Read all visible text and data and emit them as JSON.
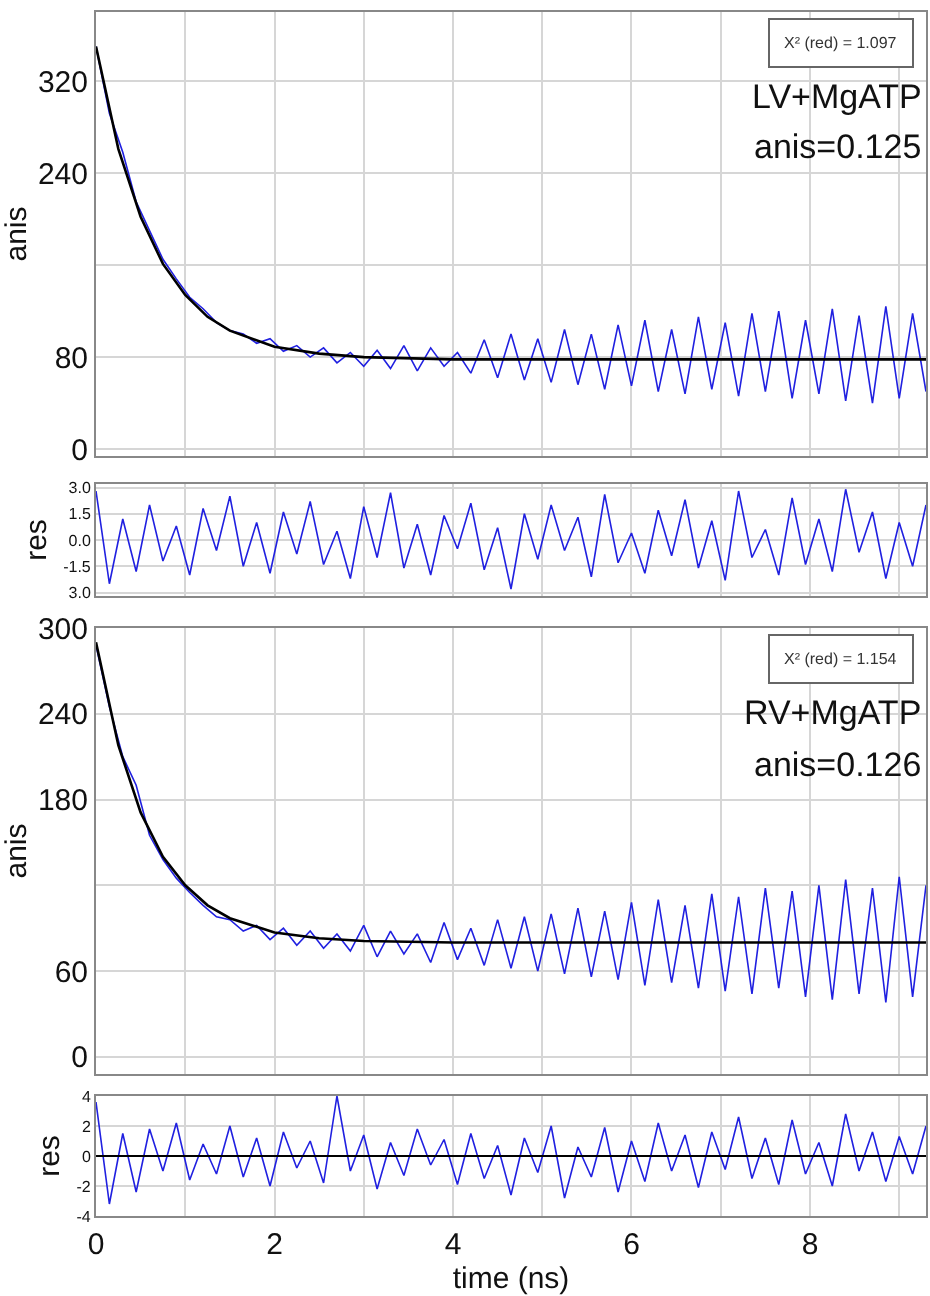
{
  "chart_data": [
    {
      "type": "line",
      "ylabel": "anis",
      "annotations": [
        "X² (red) = 1.097",
        "LV+MgATP",
        "anis=0.125"
      ],
      "xlim": [
        0,
        9.3
      ],
      "xticks": [
        0,
        {
          "value": 1,
          "label": null
        },
        2,
        {
          "value": 3,
          "label": null
        },
        4,
        {
          "value": 5,
          "label": null
        },
        6,
        {
          "value": 7,
          "label": null
        },
        8,
        {
          "value": 9,
          "label": null
        }
      ],
      "ylim": [
        -6,
        380
      ],
      "yticks": [
        0,
        80,
        {
          "value": 160,
          "label": null
        },
        240,
        320
      ],
      "grid": true,
      "tick_labels": "y",
      "x": [
        0,
        0.15,
        0.3,
        0.45,
        0.6,
        0.75,
        0.9,
        1.05,
        1.2,
        1.35,
        1.5,
        1.65,
        1.8,
        1.95,
        2.1,
        2.25,
        2.4,
        2.55,
        2.7,
        2.85,
        3.0,
        3.15,
        3.3,
        3.45,
        3.6,
        3.75,
        3.9,
        4.05,
        4.2,
        4.35,
        4.5,
        4.65,
        4.8,
        4.95,
        5.1,
        5.25,
        5.4,
        5.55,
        5.7,
        5.85,
        6.0,
        6.15,
        6.3,
        6.45,
        6.6,
        6.75,
        6.9,
        7.05,
        7.2,
        7.35,
        7.5,
        7.65,
        7.8,
        7.95,
        8.1,
        8.25,
        8.4,
        8.55,
        8.7,
        8.85,
        9.0,
        9.15,
        9.3
      ],
      "series": [
        {
          "color": "#2020e0",
          "values": [
            350,
            292,
            258,
            215,
            190,
            165,
            148,
            132,
            122,
            110,
            103,
            100,
            92,
            96,
            85,
            90,
            80,
            88,
            75,
            84,
            72,
            86,
            70,
            90,
            68,
            88,
            72,
            84,
            66,
            95,
            62,
            100,
            60,
            96,
            58,
            104,
            56,
            100,
            52,
            108,
            55,
            112,
            50,
            104,
            48,
            115,
            52,
            110,
            46,
            118,
            50,
            120,
            44,
            112,
            48,
            122,
            42,
            116,
            40,
            124,
            44,
            118,
            50
          ]
        },
        {
          "color": "#000000",
          "x": [
            0,
            0.25,
            0.5,
            0.75,
            1,
            1.25,
            1.5,
            2,
            2.5,
            3,
            4,
            5,
            6,
            7,
            8,
            9.3
          ],
          "values": [
            350,
            261,
            202,
            161,
            134,
            115,
            103,
            89,
            83,
            80,
            78,
            78,
            78,
            78,
            78,
            78
          ]
        }
      ]
    },
    {
      "type": "line",
      "ylabel": "res",
      "xlim": [
        0,
        9.3
      ],
      "xticks": [
        0,
        {
          "value": 1,
          "label": null
        },
        2,
        {
          "value": 3,
          "label": null
        },
        4,
        {
          "value": 5,
          "label": null
        },
        6,
        {
          "value": 7,
          "label": null
        },
        8,
        {
          "value": 9,
          "label": null
        }
      ],
      "ylim": [
        -3.2,
        3.2
      ],
      "yticks": [
        {
          "value": -3,
          "label": "3.0"
        },
        -1.5,
        {
          "value": 0,
          "label": "0.0"
        },
        1.5,
        {
          "value": 3,
          "label": "3.0"
        }
      ],
      "grid": true,
      "tick_labels": "y",
      "x": [
        0,
        0.15,
        0.3,
        0.45,
        0.6,
        0.75,
        0.9,
        1.05,
        1.2,
        1.35,
        1.5,
        1.65,
        1.8,
        1.95,
        2.1,
        2.25,
        2.4,
        2.55,
        2.7,
        2.85,
        3.0,
        3.15,
        3.3,
        3.45,
        3.6,
        3.75,
        3.9,
        4.05,
        4.2,
        4.35,
        4.5,
        4.65,
        4.8,
        4.95,
        5.1,
        5.25,
        5.4,
        5.55,
        5.7,
        5.85,
        6.0,
        6.15,
        6.3,
        6.45,
        6.6,
        6.75,
        6.9,
        7.05,
        7.2,
        7.35,
        7.5,
        7.65,
        7.8,
        7.95,
        8.1,
        8.25,
        8.4,
        8.55,
        8.7,
        8.85,
        9.0,
        9.15,
        9.3
      ],
      "series": [
        {
          "color": "#2020e0",
          "values": [
            2.8,
            -2.5,
            1.2,
            -1.8,
            2.0,
            -1.2,
            0.8,
            -2.0,
            1.8,
            -0.6,
            2.5,
            -1.5,
            1.0,
            -1.9,
            1.6,
            -0.8,
            2.2,
            -1.4,
            0.5,
            -2.2,
            1.9,
            -1.0,
            2.7,
            -1.6,
            0.9,
            -2.0,
            1.4,
            -0.5,
            2.1,
            -1.7,
            0.7,
            -2.8,
            1.5,
            -1.1,
            2.0,
            -0.6,
            1.3,
            -2.1,
            2.6,
            -1.3,
            0.4,
            -1.9,
            1.7,
            -0.9,
            2.3,
            -1.6,
            1.1,
            -2.3,
            2.8,
            -1.0,
            0.6,
            -2.0,
            2.4,
            -1.4,
            1.2,
            -1.8,
            2.9,
            -0.7,
            1.6,
            -2.2,
            1.0,
            -1.5,
            2.0
          ]
        }
      ]
    },
    {
      "type": "line",
      "ylabel": "anis",
      "annotations": [
        "X² (red) = 1.154",
        "RV+MgATP",
        "anis=0.126"
      ],
      "xlim": [
        0,
        9.3
      ],
      "xticks": [
        0,
        {
          "value": 1,
          "label": null
        },
        2,
        {
          "value": 3,
          "label": null
        },
        4,
        {
          "value": 5,
          "label": null
        },
        6,
        {
          "value": 7,
          "label": null
        },
        8,
        {
          "value": 9,
          "label": null
        }
      ],
      "ylim": [
        -12,
        300
      ],
      "yticks": [
        0,
        60,
        {
          "value": 120,
          "label": null
        },
        180,
        240,
        300
      ],
      "grid": true,
      "tick_labels": "y",
      "x": [
        0,
        0.15,
        0.3,
        0.45,
        0.6,
        0.75,
        0.9,
        1.05,
        1.2,
        1.35,
        1.5,
        1.65,
        1.8,
        1.95,
        2.1,
        2.25,
        2.4,
        2.55,
        2.7,
        2.85,
        3.0,
        3.15,
        3.3,
        3.45,
        3.6,
        3.75,
        3.9,
        4.05,
        4.2,
        4.35,
        4.5,
        4.65,
        4.8,
        4.95,
        5.1,
        5.25,
        5.4,
        5.55,
        5.7,
        5.85,
        6.0,
        6.15,
        6.3,
        6.45,
        6.6,
        6.75,
        6.9,
        7.05,
        7.2,
        7.35,
        7.5,
        7.65,
        7.8,
        7.95,
        8.1,
        8.25,
        8.4,
        8.55,
        8.7,
        8.85,
        9.0,
        9.15,
        9.3
      ],
      "series": [
        {
          "color": "#2020e0",
          "values": [
            288,
            245,
            210,
            190,
            155,
            138,
            125,
            115,
            106,
            98,
            96,
            88,
            92,
            82,
            90,
            78,
            88,
            76,
            86,
            74,
            92,
            70,
            88,
            72,
            86,
            66,
            94,
            68,
            90,
            64,
            96,
            62,
            98,
            60,
            100,
            58,
            104,
            56,
            102,
            54,
            108,
            50,
            110,
            52,
            106,
            48,
            114,
            46,
            112,
            44,
            118,
            48,
            116,
            42,
            120,
            40,
            124,
            44,
            118,
            38,
            126,
            42,
            120
          ]
        },
        {
          "color": "#000000",
          "x": [
            0,
            0.25,
            0.5,
            0.75,
            1,
            1.25,
            1.5,
            2,
            2.5,
            3,
            4,
            5,
            6,
            7,
            8,
            9.3
          ],
          "values": [
            290,
            218,
            171,
            140,
            120,
            106,
            97,
            87,
            83,
            81,
            80,
            80,
            80,
            80,
            80,
            80
          ]
        }
      ]
    },
    {
      "type": "line",
      "ylabel": "res",
      "xlabel": "time (ns)",
      "xlim": [
        0,
        9.3
      ],
      "xticks": [
        0,
        {
          "value": 1,
          "label": null
        },
        2,
        {
          "value": 3,
          "label": null
        },
        4,
        {
          "value": 5,
          "label": null
        },
        6,
        {
          "value": 7,
          "label": null
        },
        8,
        {
          "value": 9,
          "label": null
        }
      ],
      "ylim": [
        -4,
        4
      ],
      "yticks": [
        -4,
        -2,
        0,
        2,
        4
      ],
      "grid": true,
      "ref_lines": [
        {
          "axis": "y",
          "value": 0,
          "color": "#000000"
        }
      ],
      "x": [
        0,
        0.15,
        0.3,
        0.45,
        0.6,
        0.75,
        0.9,
        1.05,
        1.2,
        1.35,
        1.5,
        1.65,
        1.8,
        1.95,
        2.1,
        2.25,
        2.4,
        2.55,
        2.7,
        2.85,
        3.0,
        3.15,
        3.3,
        3.45,
        3.6,
        3.75,
        3.9,
        4.05,
        4.2,
        4.35,
        4.5,
        4.65,
        4.8,
        4.95,
        5.1,
        5.25,
        5.4,
        5.55,
        5.7,
        5.85,
        6.0,
        6.15,
        6.3,
        6.45,
        6.6,
        6.75,
        6.9,
        7.05,
        7.2,
        7.35,
        7.5,
        7.65,
        7.8,
        7.95,
        8.1,
        8.25,
        8.4,
        8.55,
        8.7,
        8.85,
        9.0,
        9.15,
        9.3
      ],
      "series": [
        {
          "color": "#2020e0",
          "values": [
            3.6,
            -3.2,
            1.5,
            -2.4,
            1.8,
            -1.0,
            2.2,
            -1.6,
            0.8,
            -1.2,
            2.0,
            -1.4,
            1.2,
            -2.0,
            1.6,
            -0.8,
            1.0,
            -1.8,
            4.0,
            -1.0,
            1.4,
            -2.2,
            0.9,
            -1.3,
            1.8,
            -0.6,
            1.1,
            -1.9,
            1.5,
            -1.5,
            0.7,
            -2.6,
            1.2,
            -1.1,
            2.0,
            -2.8,
            0.6,
            -1.4,
            1.9,
            -2.4,
            1.0,
            -1.7,
            2.2,
            -1.0,
            1.4,
            -2.1,
            1.6,
            -0.9,
            2.6,
            -1.5,
            1.2,
            -1.9,
            2.4,
            -1.2,
            0.9,
            -2.0,
            2.8,
            -1.0,
            1.6,
            -1.7,
            1.3,
            -1.2,
            2.0
          ]
        }
      ]
    }
  ]
}
